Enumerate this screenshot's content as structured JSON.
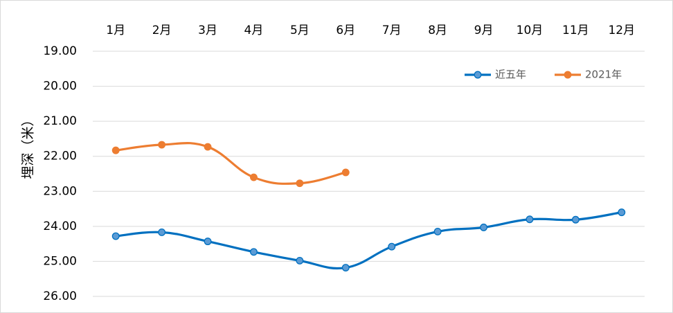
{
  "chart_data": {
    "type": "line",
    "title": "",
    "xlabel": "",
    "ylabel": "埋深（米）",
    "categories": [
      "1月",
      "2月",
      "3月",
      "4月",
      "5月",
      "6月",
      "7月",
      "8月",
      "9月",
      "10月",
      "11月",
      "12月"
    ],
    "y_ticks": [
      "19.00",
      "20.00",
      "21.00",
      "22.00",
      "23.00",
      "24.00",
      "25.00",
      "26.00"
    ],
    "ylim": [
      19,
      26
    ],
    "y_inverted": true,
    "x_axis_position": "top",
    "grid": true,
    "legend_position": "top-right",
    "series": [
      {
        "name": "近五年",
        "color": "#0070C0",
        "values": [
          24.28,
          24.17,
          24.43,
          24.73,
          24.98,
          25.18,
          24.58,
          24.15,
          24.03,
          23.8,
          23.81,
          23.6
        ]
      },
      {
        "name": "2021年",
        "color": "#ED7D31",
        "values": [
          21.83,
          21.67,
          21.73,
          22.6,
          22.77,
          22.46,
          null,
          null,
          null,
          null,
          null,
          null
        ]
      }
    ]
  }
}
